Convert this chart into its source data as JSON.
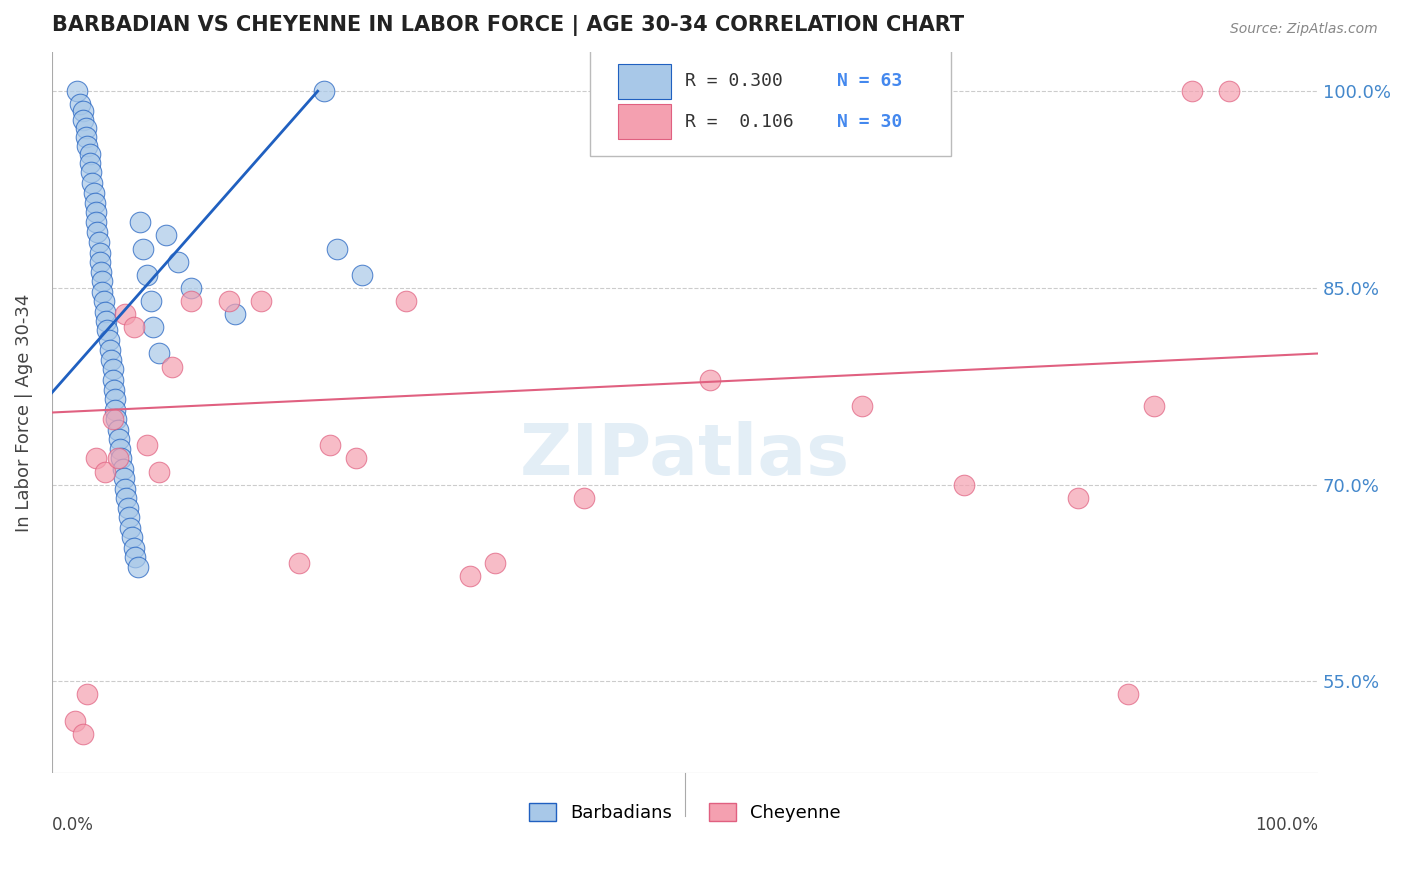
{
  "title": "BARBADIAN VS CHEYENNE IN LABOR FORCE | AGE 30-34 CORRELATION CHART",
  "source_text": "Source: ZipAtlas.com",
  "ylabel": "In Labor Force | Age 30-34",
  "watermark": "ZIPatlas",
  "legend_labels": [
    "Barbadians",
    "Cheyenne"
  ],
  "blue_color": "#a8c8e8",
  "pink_color": "#f4a0b0",
  "blue_line_color": "#2060c0",
  "pink_line_color": "#e06080",
  "xlim": [
    0.0,
    1.0
  ],
  "ylim": [
    0.48,
    1.03
  ],
  "yticks": [
    0.55,
    0.7,
    0.85,
    1.0
  ],
  "ytick_labels": [
    "55.0%",
    "70.0%",
    "85.0%",
    "100.0%"
  ],
  "grid_color": "#cccccc",
  "background_color": "#ffffff",
  "blue_x": [
    0.02,
    0.022,
    0.025,
    0.025,
    0.027,
    0.027,
    0.028,
    0.03,
    0.03,
    0.031,
    0.032,
    0.033,
    0.034,
    0.035,
    0.035,
    0.036,
    0.037,
    0.038,
    0.038,
    0.039,
    0.04,
    0.04,
    0.041,
    0.042,
    0.043,
    0.044,
    0.045,
    0.046,
    0.047,
    0.048,
    0.048,
    0.049,
    0.05,
    0.05,
    0.051,
    0.052,
    0.053,
    0.054,
    0.055,
    0.056,
    0.057,
    0.058,
    0.059,
    0.06,
    0.061,
    0.062,
    0.063,
    0.065,
    0.066,
    0.068,
    0.07,
    0.072,
    0.075,
    0.078,
    0.08,
    0.085,
    0.09,
    0.1,
    0.11,
    0.145,
    0.215,
    0.225,
    0.245
  ],
  "blue_y": [
    1.0,
    0.99,
    0.985,
    0.978,
    0.972,
    0.965,
    0.958,
    0.952,
    0.945,
    0.938,
    0.93,
    0.922,
    0.915,
    0.908,
    0.9,
    0.893,
    0.885,
    0.877,
    0.87,
    0.862,
    0.855,
    0.847,
    0.84,
    0.832,
    0.825,
    0.818,
    0.81,
    0.803,
    0.795,
    0.788,
    0.78,
    0.772,
    0.765,
    0.757,
    0.75,
    0.742,
    0.735,
    0.727,
    0.72,
    0.712,
    0.705,
    0.697,
    0.69,
    0.682,
    0.675,
    0.667,
    0.66,
    0.652,
    0.645,
    0.637,
    0.9,
    0.88,
    0.86,
    0.84,
    0.82,
    0.8,
    0.89,
    0.87,
    0.85,
    0.83,
    1.0,
    0.88,
    0.86
  ],
  "pink_x": [
    0.018,
    0.025,
    0.028,
    0.035,
    0.042,
    0.048,
    0.052,
    0.058,
    0.065,
    0.075,
    0.085,
    0.095,
    0.11,
    0.14,
    0.165,
    0.195,
    0.22,
    0.24,
    0.28,
    0.33,
    0.35,
    0.42,
    0.52,
    0.64,
    0.72,
    0.81,
    0.85,
    0.87,
    0.9,
    0.93
  ],
  "pink_y": [
    0.52,
    0.51,
    0.54,
    0.72,
    0.71,
    0.75,
    0.72,
    0.83,
    0.82,
    0.73,
    0.71,
    0.79,
    0.84,
    0.84,
    0.84,
    0.64,
    0.73,
    0.72,
    0.84,
    0.63,
    0.64,
    0.69,
    0.78,
    0.76,
    0.7,
    0.69,
    0.54,
    0.76,
    1.0,
    1.0
  ],
  "blue_trend_x": [
    0.0,
    0.21
  ],
  "blue_trend_y": [
    0.77,
    1.0
  ],
  "pink_trend_x": [
    0.0,
    1.0
  ],
  "pink_trend_y": [
    0.755,
    0.8
  ],
  "legend_r_blue": "R = 0.300",
  "legend_n_blue": "N = 63",
  "legend_r_pink": "R =  0.106",
  "legend_n_pink": "N = 30"
}
